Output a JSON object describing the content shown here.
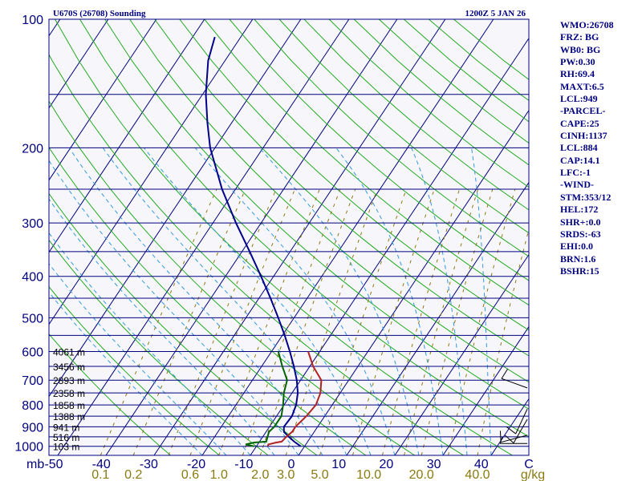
{
  "chart_data": {
    "type": "line",
    "subtype": "skew-t log-p sounding",
    "title": "U670S (26708) Sounding",
    "valid_time": "1200Z  5 JAN 26",
    "pressure_axis_label": "mb",
    "pressure_ticks": [
      100,
      200,
      300,
      400,
      500,
      600,
      700,
      800,
      900,
      1000
    ],
    "pressure_range_mb": [
      1050,
      100
    ],
    "temperature_ticks": [
      "-50",
      "-40",
      "-30",
      "-20",
      "-10",
      "0",
      "10",
      "20",
      "30",
      "40",
      "C"
    ],
    "temperature_range_c": [
      -50,
      50
    ],
    "mixing_ratio_label": "g/kg",
    "mixing_ratio_ticks": [
      "0.1",
      "0.2",
      "0.6",
      "1.0",
      "2.0",
      "3.0",
      "5.0",
      "10.0",
      "20.0",
      "40.0"
    ],
    "height_labels": [
      "4061 m",
      "3456 m",
      "2893 m",
      "2358 m",
      "1858 m",
      "1388 m",
      "941 m",
      "516 m",
      "103 m"
    ],
    "series": [
      {
        "name": "Temperature",
        "color": "#00008b",
        "points_p_t": [
          [
            1000,
            -0.8
          ],
          [
            975,
            -2.8
          ],
          [
            950,
            -4.6
          ],
          [
            925,
            -6.3
          ],
          [
            900,
            -7.0
          ],
          [
            850,
            -6.8
          ],
          [
            800,
            -7.5
          ],
          [
            750,
            -8.8
          ],
          [
            700,
            -10.8
          ],
          [
            650,
            -13.3
          ],
          [
            600,
            -16.2
          ],
          [
            550,
            -19.5
          ],
          [
            500,
            -23.3
          ],
          [
            450,
            -27.6
          ],
          [
            400,
            -32.6
          ],
          [
            350,
            -38.4
          ],
          [
            300,
            -45.2
          ],
          [
            250,
            -52.8
          ],
          [
            200,
            -61.0
          ],
          [
            175,
            -65.0
          ],
          [
            150,
            -69.3
          ],
          [
            125,
            -73.5
          ],
          [
            110,
            -75.4
          ]
        ]
      },
      {
        "name": "Dewpoint",
        "color": "#006400",
        "points_p_t": [
          [
            1000,
            -10.5
          ],
          [
            990,
            -12.5
          ],
          [
            980,
            -11.0
          ],
          [
            975,
            -8.6
          ],
          [
            950,
            -9.0
          ],
          [
            925,
            -9.4
          ],
          [
            900,
            -9.0
          ],
          [
            850,
            -9.0
          ],
          [
            800,
            -10.2
          ],
          [
            750,
            -11.7
          ],
          [
            700,
            -12.8
          ],
          [
            650,
            -15.7
          ],
          [
            600,
            -18.6
          ]
        ]
      },
      {
        "name": "Wet-bulb",
        "color": "#b22222",
        "points_p_t": [
          [
            1000,
            -7.6
          ],
          [
            990,
            -7.8
          ],
          [
            980,
            -6.4
          ],
          [
            975,
            -5.4
          ],
          [
            950,
            -5.1
          ],
          [
            925,
            -4.6
          ],
          [
            900,
            -4.6
          ],
          [
            850,
            -3.8
          ],
          [
            800,
            -3.4
          ],
          [
            750,
            -4.1
          ],
          [
            700,
            -5.7
          ],
          [
            650,
            -9.3
          ],
          [
            600,
            -12.4
          ]
        ]
      }
    ],
    "wind_barbs": [
      {
        "pressure_mb": 730,
        "direction_deg": 290,
        "speed_kt": 10
      },
      {
        "pressure_mb": 818,
        "direction_deg": 205,
        "speed_kt": 10
      },
      {
        "pressure_mb": 865,
        "direction_deg": 210,
        "speed_kt": 10
      },
      {
        "pressure_mb": 942,
        "direction_deg": 255,
        "speed_kt": 10
      },
      {
        "pressure_mb": 985,
        "direction_deg": 270,
        "speed_kt": 5
      }
    ],
    "indices": [
      "WMO:26708",
      "FRZ: BG",
      "WB0: BG",
      "PW:0.30",
      "RH:69.4",
      "MAXT:6.5",
      "LCL:949",
      "-PARCEL-",
      "CAPE:25",
      "CINH:1137",
      "LCL:884",
      "CAP:14.1",
      "LFC:-1",
      "-WIND-",
      "STM:353/12",
      "HEL:172",
      "SHR+:0.0",
      "SRDS:-63",
      "EHI:0.0",
      "BRN:1.6",
      "BSHR:15"
    ]
  },
  "colors": {
    "frame": "#000080",
    "isobar": "#000080",
    "isotherm": "#000080",
    "dry_adiabat": "#22aa22",
    "moist_adiabat": "#3399dd",
    "mixing_ratio": "#8a7a10"
  }
}
